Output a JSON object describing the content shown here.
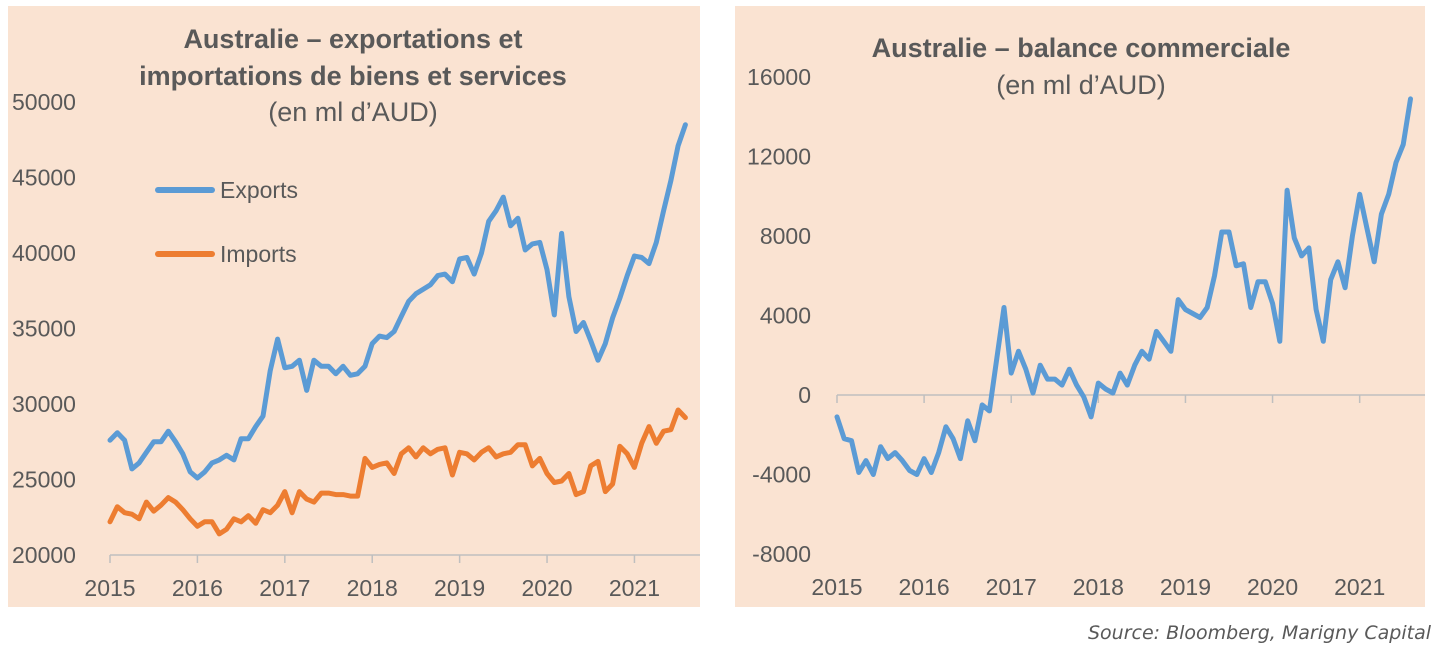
{
  "source_label": "Source: Bloomberg, Marigny Capital",
  "chart_data": [
    {
      "type": "line",
      "title": "Australie – exportations et",
      "title_line2": "importations de biens et services",
      "subtitle": "(en ml d’AUD)",
      "x_tick_labels": [
        "2015",
        "2016",
        "2017",
        "2018",
        "2019",
        "2020",
        "2021"
      ],
      "y_tick_labels": [
        "20000",
        "25000",
        "30000",
        "35000",
        "40000",
        "45000",
        "50000"
      ],
      "ylim": [
        20000,
        50000
      ],
      "xlim": [
        2015,
        2021.75
      ],
      "legend_position": "upper-left",
      "grid": false,
      "series": [
        {
          "name": "Exports",
          "color": "#5b9bd5",
          "x": [
            2015.0,
            2015.083,
            2015.167,
            2015.25,
            2015.333,
            2015.417,
            2015.5,
            2015.583,
            2015.667,
            2015.75,
            2015.833,
            2015.917,
            2016.0,
            2016.083,
            2016.167,
            2016.25,
            2016.333,
            2016.417,
            2016.5,
            2016.583,
            2016.667,
            2016.75,
            2016.833,
            2016.917,
            2017.0,
            2017.083,
            2017.167,
            2017.25,
            2017.333,
            2017.417,
            2017.5,
            2017.583,
            2017.667,
            2017.75,
            2017.833,
            2017.917,
            2018.0,
            2018.083,
            2018.167,
            2018.25,
            2018.333,
            2018.417,
            2018.5,
            2018.583,
            2018.667,
            2018.75,
            2018.833,
            2018.917,
            2019.0,
            2019.083,
            2019.167,
            2019.25,
            2019.333,
            2019.417,
            2019.5,
            2019.583,
            2019.667,
            2019.75,
            2019.833,
            2019.917,
            2020.0,
            2020.083,
            2020.167,
            2020.25,
            2020.333,
            2020.417,
            2020.5,
            2020.583,
            2020.667,
            2020.75,
            2020.833,
            2020.917,
            2021.0,
            2021.083,
            2021.167,
            2021.25,
            2021.333,
            2021.417,
            2021.5,
            2021.583
          ],
          "values": [
            27600,
            28100,
            27600,
            25700,
            26100,
            26800,
            27500,
            27500,
            28200,
            27500,
            26700,
            25500,
            25100,
            25500,
            26100,
            26300,
            26600,
            26300,
            27700,
            27700,
            28500,
            29200,
            32200,
            34300,
            32400,
            32500,
            32900,
            30900,
            32900,
            32500,
            32500,
            32000,
            32500,
            31900,
            32000,
            32500,
            34000,
            34500,
            34400,
            34800,
            35800,
            36800,
            37300,
            37600,
            37900,
            38500,
            38600,
            38100,
            39600,
            39700,
            38600,
            40000,
            42100,
            42800,
            43700,
            41800,
            42300,
            40200,
            40600,
            40700,
            38900,
            35900,
            41300,
            37100,
            34800,
            35400,
            34200,
            32900,
            34000,
            35700,
            37000,
            38500,
            39800,
            39700,
            39300,
            40700,
            42800,
            44800,
            47100,
            48500
          ]
        },
        {
          "name": "Imports",
          "color": "#ed7d31",
          "x": [
            2015.0,
            2015.083,
            2015.167,
            2015.25,
            2015.333,
            2015.417,
            2015.5,
            2015.583,
            2015.667,
            2015.75,
            2015.833,
            2015.917,
            2016.0,
            2016.083,
            2016.167,
            2016.25,
            2016.333,
            2016.417,
            2016.5,
            2016.583,
            2016.667,
            2016.75,
            2016.833,
            2016.917,
            2017.0,
            2017.083,
            2017.167,
            2017.25,
            2017.333,
            2017.417,
            2017.5,
            2017.583,
            2017.667,
            2017.75,
            2017.833,
            2017.917,
            2018.0,
            2018.083,
            2018.167,
            2018.25,
            2018.333,
            2018.417,
            2018.5,
            2018.583,
            2018.667,
            2018.75,
            2018.833,
            2018.917,
            2019.0,
            2019.083,
            2019.167,
            2019.25,
            2019.333,
            2019.417,
            2019.5,
            2019.583,
            2019.667,
            2019.75,
            2019.833,
            2019.917,
            2020.0,
            2020.083,
            2020.167,
            2020.25,
            2020.333,
            2020.417,
            2020.5,
            2020.583,
            2020.667,
            2020.75,
            2020.833,
            2020.917,
            2021.0,
            2021.083,
            2021.167,
            2021.25,
            2021.333,
            2021.417,
            2021.5,
            2021.583
          ],
          "values": [
            22200,
            23200,
            22800,
            22700,
            22400,
            23500,
            22900,
            23300,
            23800,
            23500,
            23000,
            22400,
            21900,
            22200,
            22200,
            21400,
            21700,
            22400,
            22200,
            22600,
            22100,
            23000,
            22800,
            23300,
            24200,
            22800,
            24200,
            23700,
            23500,
            24100,
            24100,
            24000,
            24000,
            23900,
            23900,
            26400,
            25800,
            26000,
            26100,
            25400,
            26700,
            27100,
            26500,
            27100,
            26700,
            27000,
            27100,
            25300,
            26800,
            26700,
            26300,
            26800,
            27100,
            26500,
            26700,
            26800,
            27300,
            27300,
            25900,
            26400,
            25400,
            24800,
            24900,
            25400,
            24000,
            24200,
            25900,
            26200,
            24200,
            24700,
            27200,
            26700,
            25800,
            27400,
            28500,
            27400,
            28200,
            28300,
            29600,
            29100
          ]
        }
      ]
    },
    {
      "type": "line",
      "title": "Australie – balance commerciale",
      "subtitle": "(en ml d’AUD)",
      "x_tick_labels": [
        "2015",
        "2016",
        "2017",
        "2018",
        "2019",
        "2020",
        "2021"
      ],
      "y_tick_labels": [
        "-8000",
        "-4000",
        "0",
        "4000",
        "8000",
        "12000",
        "16000"
      ],
      "ylim": [
        -8000,
        16000
      ],
      "xlim": [
        2015,
        2021.75
      ],
      "grid": false,
      "series": [
        {
          "color": "#5b9bd5",
          "x": [
            2015.0,
            2015.083,
            2015.167,
            2015.25,
            2015.333,
            2015.417,
            2015.5,
            2015.583,
            2015.667,
            2015.75,
            2015.833,
            2015.917,
            2016.0,
            2016.083,
            2016.167,
            2016.25,
            2016.333,
            2016.417,
            2016.5,
            2016.583,
            2016.667,
            2016.75,
            2016.833,
            2016.917,
            2017.0,
            2017.083,
            2017.167,
            2017.25,
            2017.333,
            2017.417,
            2017.5,
            2017.583,
            2017.667,
            2017.75,
            2017.833,
            2017.917,
            2018.0,
            2018.083,
            2018.167,
            2018.25,
            2018.333,
            2018.417,
            2018.5,
            2018.583,
            2018.667,
            2018.75,
            2018.833,
            2018.917,
            2019.0,
            2019.083,
            2019.167,
            2019.25,
            2019.333,
            2019.417,
            2019.5,
            2019.583,
            2019.667,
            2019.75,
            2019.833,
            2019.917,
            2020.0,
            2020.083,
            2020.167,
            2020.25,
            2020.333,
            2020.417,
            2020.5,
            2020.583,
            2020.667,
            2020.75,
            2020.833,
            2020.917,
            2021.0,
            2021.083,
            2021.167,
            2021.25,
            2021.333,
            2021.417,
            2021.5,
            2021.583
          ],
          "values": [
            -1100,
            -2200,
            -2300,
            -3900,
            -3300,
            -4000,
            -2600,
            -3200,
            -2900,
            -3300,
            -3800,
            -4000,
            -3200,
            -3900,
            -2900,
            -1600,
            -2200,
            -3200,
            -1300,
            -2300,
            -500,
            -800,
            1800,
            4400,
            1100,
            2200,
            1300,
            100,
            1500,
            800,
            800,
            500,
            1300,
            500,
            -100,
            -1100,
            600,
            300,
            100,
            1100,
            500,
            1500,
            2200,
            1800,
            3200,
            2700,
            2200,
            4800,
            4300,
            4100,
            3900,
            4400,
            6000,
            8200,
            8200,
            6500,
            6600,
            4400,
            5700,
            5700,
            4600,
            2700,
            10300,
            7900,
            7000,
            7400,
            4300,
            2700,
            5800,
            6700,
            5400,
            8000,
            10100,
            8400,
            6700,
            9100,
            10100,
            11700,
            12600,
            14900
          ]
        }
      ]
    }
  ]
}
